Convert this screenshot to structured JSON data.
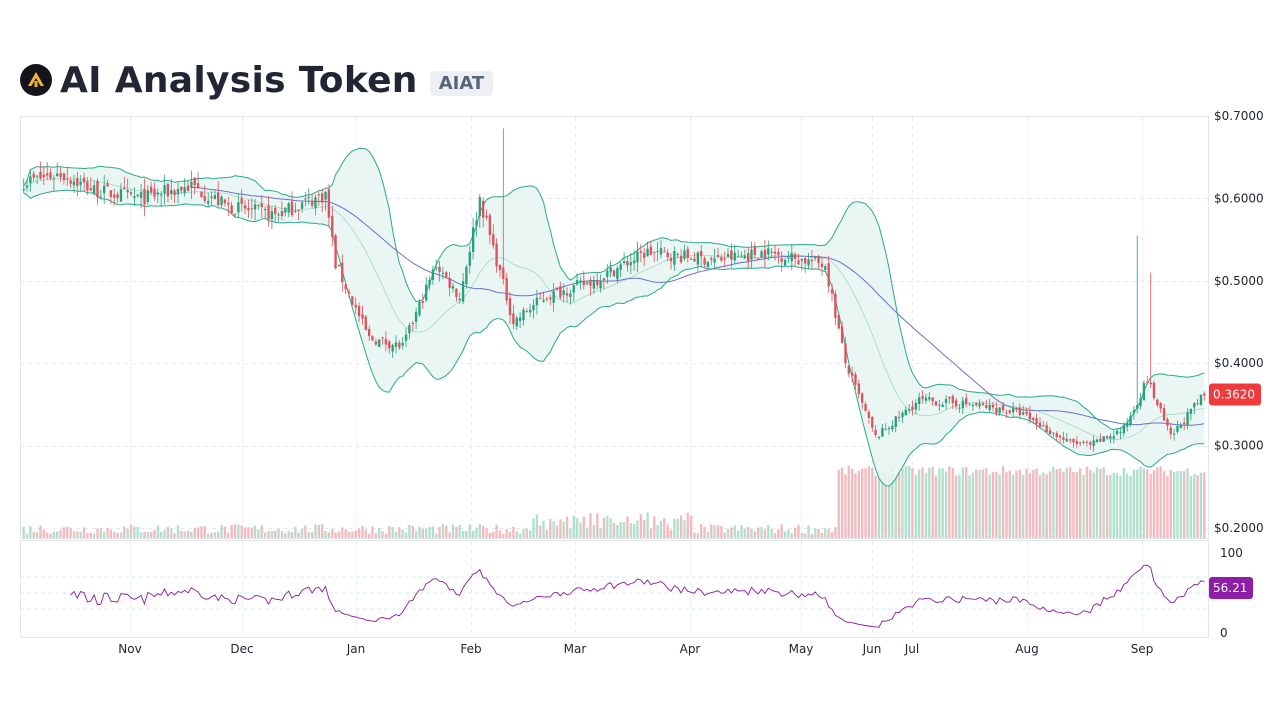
{
  "header": {
    "title": "AI Analysis Token",
    "ticker": "AIAT",
    "logo_icon": "ai-token-logo-icon",
    "logo_colors": {
      "bg": "#14141a",
      "mark": "#f2b233"
    }
  },
  "colors": {
    "up": "#26a17b",
    "down": "#e0525b",
    "band_line": "#2aa98a",
    "band_fill": "#e6f4f1",
    "ma_line": "#6b72c8",
    "rsi_line": "#8b1a9b",
    "price_tag": "#ef3b3b",
    "rsi_tag": "#8e1ea5",
    "grid": "#e6e9ee"
  },
  "chart_data": {
    "type": "candlestick",
    "indicators": [
      "Bollinger Bands",
      "Moving Average",
      "Volume",
      "RSI"
    ],
    "price_axis": {
      "ylim": [
        0.2,
        0.7
      ],
      "ticks": [
        "$0.7000",
        "$0.6000",
        "$0.5000",
        "$0.4000",
        "$0.3000",
        "$0.2000"
      ]
    },
    "rsi_axis": {
      "ylim": [
        0,
        100
      ],
      "ticks": [
        "100",
        "0"
      ]
    },
    "x_labels": [
      "Nov",
      "Dec",
      "Jan",
      "Feb",
      "Mar",
      "Apr",
      "May",
      "Jun",
      "Jul",
      "Aug",
      "Sep"
    ],
    "close_path": [
      [
        "Oct 1",
        0.62
      ],
      [
        "Oct 12",
        0.63
      ],
      [
        "Oct 22",
        0.61
      ],
      [
        "Nov 5",
        0.6
      ],
      [
        "Nov 20",
        0.615
      ],
      [
        "Dec 1",
        0.59
      ],
      [
        "Dec 15",
        0.58
      ],
      [
        "Dec 30",
        0.605
      ],
      [
        "Jan 2",
        0.52
      ],
      [
        "Jan 12",
        0.43
      ],
      [
        "Jan 22",
        0.42
      ],
      [
        "Feb 1",
        0.52
      ],
      [
        "Feb 8",
        0.48
      ],
      [
        "Feb 14",
        0.6
      ],
      [
        "Feb 24",
        0.45
      ],
      [
        "Mar 5",
        0.48
      ],
      [
        "Mar 20",
        0.5
      ],
      [
        "Apr 5",
        0.535
      ],
      [
        "Apr 25",
        0.525
      ],
      [
        "May 10",
        0.535
      ],
      [
        "May 28",
        0.52
      ],
      [
        "Jun 3",
        0.4
      ],
      [
        "Jun 12",
        0.31
      ],
      [
        "Jun 25",
        0.355
      ],
      [
        "Jul 10",
        0.35
      ],
      [
        "Jul 25",
        0.34
      ],
      [
        "Aug 8",
        0.305
      ],
      [
        "Aug 15",
        0.3
      ],
      [
        "Aug 25",
        0.32
      ],
      [
        "Sep 1",
        0.38
      ],
      [
        "Sep 8",
        0.31
      ],
      [
        "Sep 18",
        0.362
      ]
    ],
    "last_price": "0.3620",
    "last_rsi": "56.21"
  }
}
